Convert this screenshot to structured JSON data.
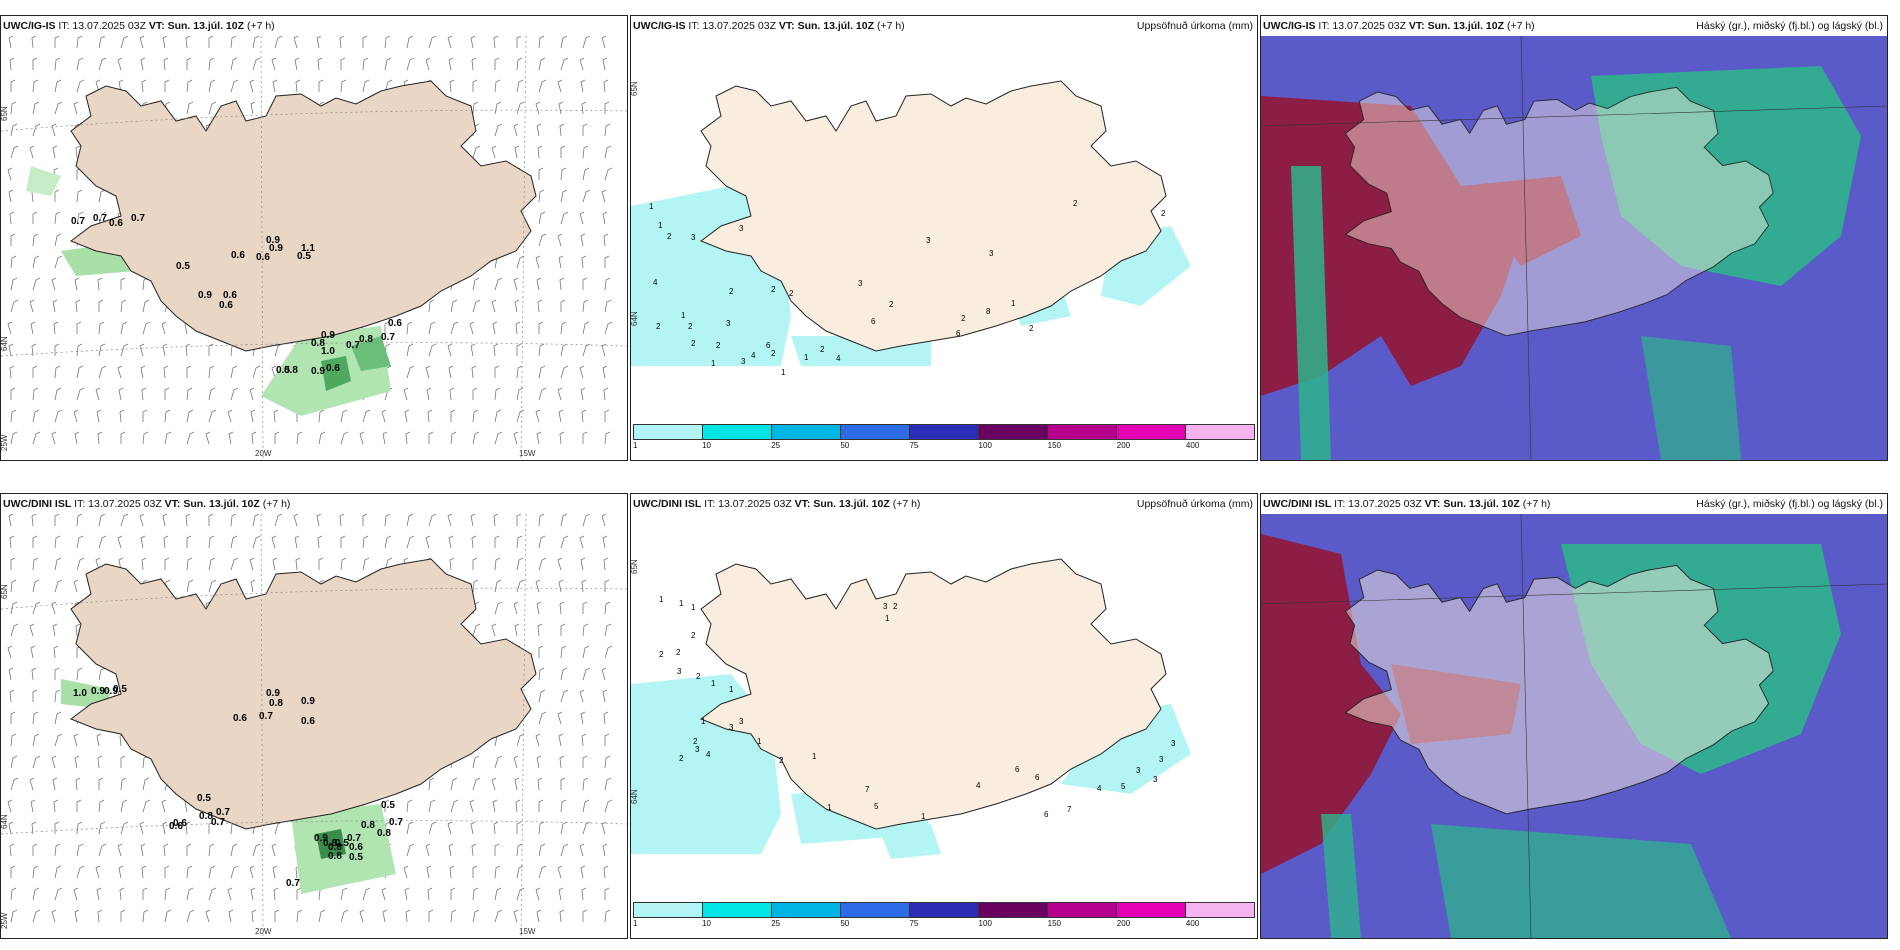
{
  "panels": [
    {
      "model": "UWC/IG-IS",
      "it": "13.07.2025 03Z",
      "vt": "Sun. 13.júl. 10Z",
      "lead": "(+7 h)",
      "title_right": "",
      "axis": {
        "lat_top": "65N",
        "lat_mid": "64N",
        "lon_left": "25W",
        "lon_mid": "20W",
        "lon_right": "15W"
      },
      "values": [
        "0.7",
        "0.7",
        "0.6",
        "0.7",
        "0.5",
        "0.9",
        "0.6",
        "0.6",
        "0.9",
        "1.1",
        "0.5",
        "0.9",
        "0.6",
        "0.6",
        "0.9",
        "0.8",
        "0.7",
        "0.8",
        "0.7",
        "0.6",
        "1.0",
        "0.6",
        "0.5",
        "0.8",
        "0.9"
      ]
    },
    {
      "model": "UWC/IG-IS",
      "it": "13.07.2025 03Z",
      "vt": "Sun. 13.júl. 10Z",
      "lead": "(+7 h)",
      "title_right": "Uppsöfnuð úrkoma (mm)",
      "axis": {
        "lat_top": "65N",
        "lat_mid": "64N"
      },
      "values": [
        "1",
        "1",
        "2",
        "3",
        "3",
        "4",
        "2",
        "1",
        "3",
        "2",
        "2",
        "4",
        "2",
        "2",
        "2",
        "2",
        "1",
        "3",
        "6",
        "2",
        "1",
        "2",
        "1",
        "4",
        "6",
        "3",
        "2",
        "6",
        "8",
        "1",
        "2",
        "3",
        "3",
        "2",
        "2",
        "2"
      ],
      "colorbar": {
        "colors": [
          "#b3f5f5",
          "#00e6e6",
          "#00b4e6",
          "#2e6be6",
          "#2c2cb4",
          "#6a0060",
          "#b4008c",
          "#e600b4",
          "#f5b4f0"
        ],
        "ticks": [
          "1",
          "10",
          "25",
          "50",
          "75",
          "100",
          "150",
          "200",
          "400"
        ]
      }
    },
    {
      "model": "UWC/IG-IS",
      "it": "13.07.2025 03Z",
      "vt": "Sun. 13.júl. 10Z",
      "lead": "(+7 h)",
      "title_right": "Háský (gr.), miðský (fj.bl.) og lágský (bl.)"
    },
    {
      "model": "UWC/DINI ISL",
      "it": "13.07.2025 03Z",
      "vt": "Sun. 13.júl. 10Z",
      "lead": "(+7 h)",
      "title_right": "",
      "axis": {
        "lat_top": "65N",
        "lat_mid": "64N",
        "lon_left": "25W",
        "lon_mid": "20W",
        "lon_right": "15W"
      },
      "values": [
        "1.0",
        "0.9",
        "0.9",
        "0.5",
        "0.9",
        "0.8",
        "0.7",
        "0.6",
        "0.6",
        "0.9",
        "0.5",
        "0.7",
        "0.8",
        "0.6",
        "0.7",
        "0.6",
        "0.5",
        "0.7",
        "0.8",
        "0.8",
        "0.9",
        "0.8",
        "0.7",
        "0.5",
        "0.5",
        "0.8",
        "0.6",
        "0.7",
        "0.8"
      ]
    },
    {
      "model": "UWC/DINI ISL",
      "it": "13.07.2025 03Z",
      "vt": "Sun. 13.júl. 10Z",
      "lead": "(+7 h)",
      "title_right": "Uppsöfnuð úrkoma (mm)",
      "axis": {
        "lat_top": "65N",
        "lat_mid": "64N"
      },
      "values": [
        "1",
        "1",
        "1",
        "2",
        "2",
        "2",
        "3",
        "2",
        "1",
        "1",
        "1",
        "2",
        "2",
        "3",
        "3",
        "4",
        "3",
        "1",
        "2",
        "1",
        "1",
        "7",
        "5",
        "1",
        "4",
        "6",
        "6",
        "6",
        "7",
        "4",
        "5",
        "3",
        "3",
        "3",
        "3",
        "3",
        "1",
        "2"
      ],
      "colorbar": {
        "colors": [
          "#b3f5f5",
          "#00e6e6",
          "#00b4e6",
          "#2e6be6",
          "#2c2cb4",
          "#6a0060",
          "#b4008c",
          "#e600b4",
          "#f5b4f0"
        ],
        "ticks": [
          "1",
          "10",
          "25",
          "50",
          "75",
          "100",
          "150",
          "200",
          "400"
        ]
      }
    },
    {
      "model": "UWC/DINI ISL",
      "it": "13.07.2025 03Z",
      "vt": "Sun. 13.júl. 10Z",
      "lead": "(+7 h)",
      "title_right": "Háský (gr.), miðský (fj.bl.) og lágský (bl.)"
    }
  ],
  "colors": {
    "land": "#f8eddf",
    "land_wind": "#ead6c4",
    "precip_light": "#b3f5f5",
    "cloud_low": "#5a5ac8",
    "cloud_mid": "#8c1e46",
    "cloud_high": "#2eb48c"
  }
}
